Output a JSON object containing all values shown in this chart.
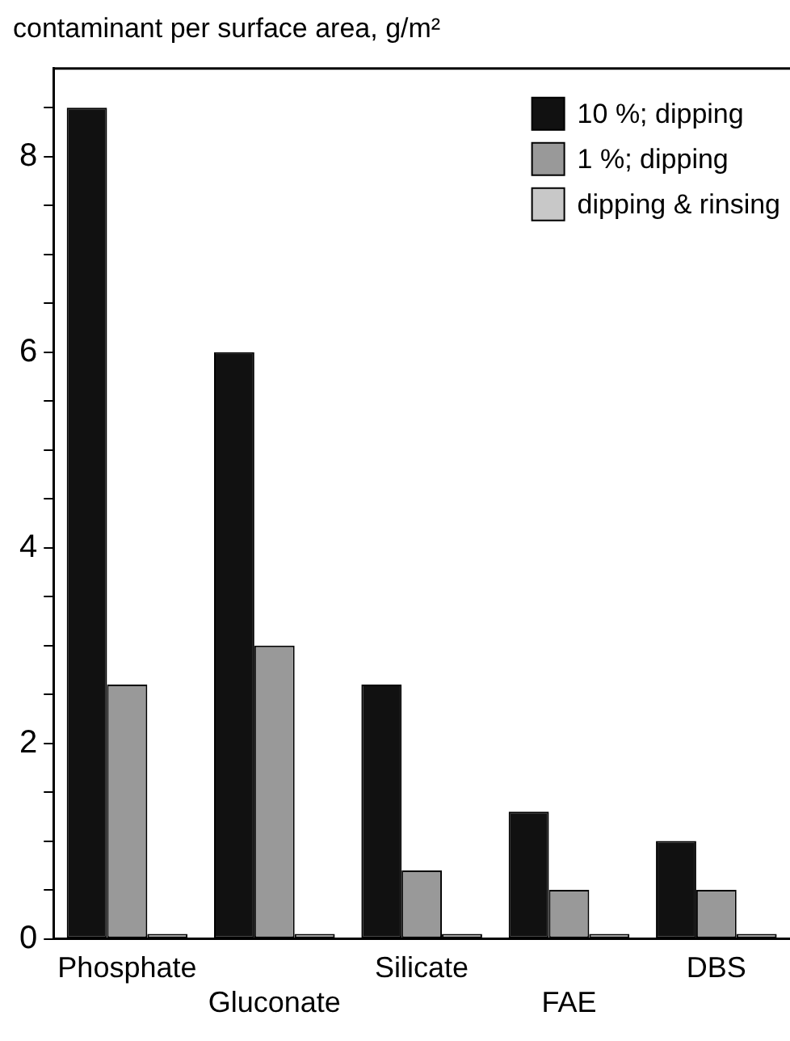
{
  "chart_data": {
    "type": "bar",
    "ylabel": "contaminant per surface area, g/m²",
    "categories": [
      "Phosphate",
      "Gluconate",
      "Silicate",
      "FAE",
      "DBS"
    ],
    "series": [
      {
        "name": "10 %; dipping",
        "color": "#111111",
        "values": [
          8.5,
          6.0,
          2.6,
          1.3,
          1.0
        ]
      },
      {
        "name": "1 %; dipping",
        "color": "#999999",
        "values": [
          2.6,
          3.0,
          0.7,
          0.5,
          0.5
        ]
      },
      {
        "name": "dipping & rinsing",
        "color": "#c8c8c8",
        "values": [
          0.05,
          0.05,
          0.05,
          0.05,
          0.05
        ]
      }
    ],
    "ylim": [
      0,
      8.9
    ],
    "yticks": [
      0,
      {
        "value": 0.5,
        "label": null
      },
      {
        "value": 1,
        "label": null
      },
      {
        "value": 1.5,
        "label": null
      },
      2,
      {
        "value": 2.5,
        "label": null
      },
      {
        "value": 3,
        "label": null
      },
      {
        "value": 3.5,
        "label": null
      },
      4,
      {
        "value": 4.5,
        "label": null
      },
      {
        "value": 5,
        "label": null
      },
      {
        "value": 5.5,
        "label": null
      },
      6,
      {
        "value": 6.5,
        "label": null
      },
      {
        "value": 7,
        "label": null
      },
      {
        "value": 7.5,
        "label": null
      },
      8,
      {
        "value": 8.5,
        "label": null
      }
    ],
    "grid": false,
    "legend": "top right"
  }
}
